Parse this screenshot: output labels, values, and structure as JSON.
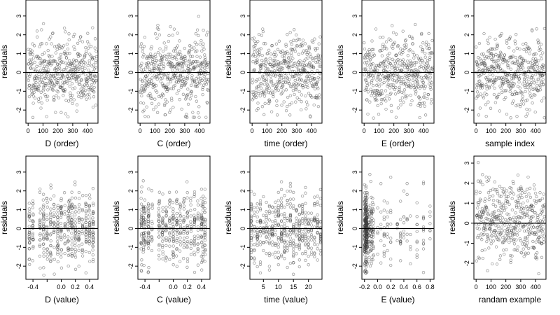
{
  "chart_data": [
    {
      "type": "scatter",
      "xlabel": "D (order)",
      "ylabel": "residuals",
      "xlim": [
        -15,
        470
      ],
      "ylim": [
        -2.7,
        3.85
      ],
      "xticks": [
        "0",
        "100",
        "200",
        "300",
        "400"
      ],
      "yticks": [
        "-2",
        "-1",
        "0",
        "1",
        "2",
        "3"
      ],
      "hline": 0,
      "x_pattern": "order",
      "y_pattern": "order",
      "seed": 11,
      "n": 460,
      "x": [
        0,
        460
      ],
      "y": [
        -2.5,
        3.7
      ]
    },
    {
      "type": "scatter",
      "xlabel": "C (order)",
      "ylabel": "residuals",
      "xlim": [
        -15,
        470
      ],
      "ylim": [
        -2.7,
        3.85
      ],
      "xticks": [
        "0",
        "100",
        "200",
        "300",
        "400"
      ],
      "yticks": [
        "-2",
        "-1",
        "0",
        "1",
        "2",
        "3"
      ],
      "hline": 0,
      "x_pattern": "order",
      "y_pattern": "order",
      "seed": 23,
      "n": 460,
      "x": [
        0,
        460
      ],
      "y": [
        -2.4,
        3.7
      ]
    },
    {
      "type": "scatter",
      "xlabel": "time (order)",
      "ylabel": "residuals",
      "xlim": [
        -15,
        470
      ],
      "ylim": [
        -2.7,
        3.85
      ],
      "xticks": [
        "0",
        "100",
        "200",
        "300",
        "400"
      ],
      "yticks": [
        "-2",
        "-1",
        "0",
        "1",
        "2",
        "3"
      ],
      "hline": 0,
      "x_pattern": "order",
      "y_pattern": "order",
      "seed": 37,
      "n": 460,
      "x": [
        0,
        460
      ],
      "y": [
        -2.5,
        3.7
      ]
    },
    {
      "type": "scatter",
      "xlabel": "E (order)",
      "ylabel": "residuals",
      "xlim": [
        -15,
        470
      ],
      "ylim": [
        -2.7,
        3.85
      ],
      "xticks": [
        "0",
        "100",
        "200",
        "300",
        "400"
      ],
      "yticks": [
        "-2",
        "-1",
        "0",
        "1",
        "2",
        "3"
      ],
      "hline": 0,
      "x_pattern": "order",
      "y_pattern": "order",
      "seed": 41,
      "n": 460,
      "x": [
        0,
        460
      ],
      "y": [
        -2.5,
        3.7
      ]
    },
    {
      "type": "scatter",
      "xlabel": "sample index",
      "ylabel": "residuals",
      "xlim": [
        -15,
        470
      ],
      "ylim": [
        -2.7,
        3.85
      ],
      "xticks": [
        "0",
        "100",
        "200",
        "300",
        "400"
      ],
      "yticks": [
        "-2",
        "-1",
        "0",
        "1",
        "2",
        "3"
      ],
      "hline": 0,
      "x_pattern": "order",
      "y_pattern": "order",
      "seed": 53,
      "n": 460,
      "x": [
        0,
        460
      ],
      "y": [
        -2.5,
        3.7
      ]
    },
    {
      "type": "scatter",
      "xlabel": "D (value)",
      "ylabel": "residuals",
      "xlim": [
        -0.5,
        0.52
      ],
      "ylim": [
        -2.7,
        3.85
      ],
      "xticks": [
        "-0.4",
        "",
        "0.0",
        "0.2",
        "0.4"
      ],
      "yticks": [
        "-2",
        "-1",
        "0",
        "1",
        "2",
        "3"
      ],
      "hline": 0,
      "x_pattern": "value_D",
      "y_pattern": "order",
      "seed": 61,
      "n": 460,
      "x": [
        -0.47,
        0.5
      ],
      "y": [
        -2.5,
        3.7
      ]
    },
    {
      "type": "scatter",
      "xlabel": "C (value)",
      "ylabel": "residuals",
      "xlim": [
        -0.5,
        0.52
      ],
      "ylim": [
        -2.7,
        3.85
      ],
      "xticks": [
        "-0.4",
        "",
        "0.0",
        "0.2",
        "0.4"
      ],
      "yticks": [
        "-2",
        "-1",
        "0",
        "1",
        "2",
        "3"
      ],
      "hline": 0,
      "x_pattern": "value_C",
      "y_pattern": "order",
      "seed": 67,
      "n": 460,
      "x": [
        -0.47,
        0.5
      ],
      "y": [
        -2.4,
        3.7
      ]
    },
    {
      "type": "scatter",
      "xlabel": "time (value)",
      "ylabel": "residuals",
      "xlim": [
        0.5,
        24.5
      ],
      "ylim": [
        -2.7,
        3.85
      ],
      "xticks": [
        "5",
        "10",
        "15",
        "20"
      ],
      "yticks": [
        "-2",
        "-1",
        "0",
        "1",
        "2",
        "3"
      ],
      "hline": 0,
      "x_pattern": "value_time",
      "y_pattern": "order",
      "seed": 71,
      "n": 460,
      "x": [
        1,
        24
      ],
      "y": [
        -2.5,
        3.7
      ]
    },
    {
      "type": "scatter",
      "xlabel": "E (value)",
      "ylabel": "residuals",
      "xlim": [
        -0.24,
        0.86
      ],
      "ylim": [
        -2.7,
        3.85
      ],
      "xticks": [
        "-0.2",
        "0.0",
        "0.2",
        "0.4",
        "0.6",
        "0.8"
      ],
      "yticks": [
        "-2",
        "-1",
        "0",
        "1",
        "2",
        "3"
      ],
      "hline": 0,
      "x_pattern": "value_E",
      "y_pattern": "order",
      "seed": 83,
      "n": 460,
      "x": [
        -0.2,
        0.82
      ],
      "y": [
        -2.4,
        3.7
      ]
    },
    {
      "type": "scatter",
      "xlabel": "randam example",
      "ylabel": "residuals",
      "xlim": [
        -15,
        470
      ],
      "ylim": [
        -2.8,
        3.35
      ],
      "xticks": [
        "0",
        "100",
        "200",
        "300",
        "400"
      ],
      "yticks": [
        "-2",
        "-1",
        "0",
        "1",
        "2",
        "3"
      ],
      "hline": 0,
      "x_pattern": "order",
      "y_pattern": "random",
      "seed": 97,
      "n": 460,
      "x": [
        0,
        460
      ],
      "y": [
        -2.6,
        3.1
      ]
    }
  ]
}
